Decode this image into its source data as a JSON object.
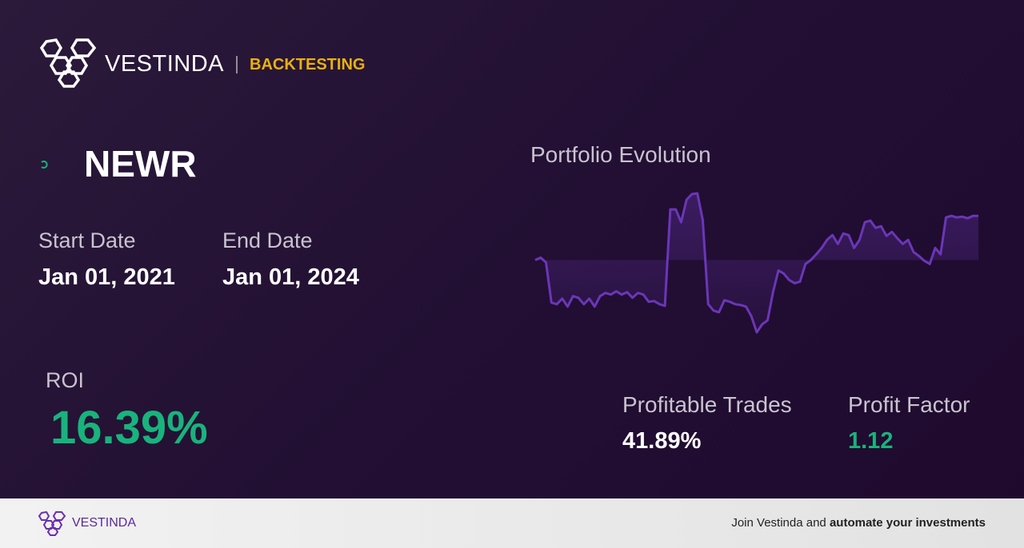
{
  "header": {
    "brand": "VESTINDA",
    "tag": "BACKTESTING"
  },
  "ticker": "NEWR",
  "start_date": {
    "label": "Start Date",
    "value": "Jan 01, 2021"
  },
  "end_date": {
    "label": "End Date",
    "value": "Jan 01, 2024"
  },
  "roi": {
    "label": "ROI",
    "value": "16.39%"
  },
  "profitable_trades": {
    "label": "Profitable Trades",
    "value": "41.89%"
  },
  "profit_factor": {
    "label": "Profit Factor",
    "value": "1.12"
  },
  "chart_data": {
    "type": "line",
    "title": "Portfolio Evolution",
    "color": "#6b36b8",
    "values": [
      0,
      0.9,
      -0.9,
      -15.9,
      -16.5,
      -14.4,
      -17.4,
      -13.5,
      -14.1,
      -16.5,
      -14.4,
      -17.4,
      -13.5,
      -12.3,
      -12.9,
      -11.7,
      -12.9,
      -12,
      -14.1,
      -12.3,
      -12.9,
      -15.6,
      -15.3,
      -16.5,
      -17.1,
      18.9,
      18.9,
      14.1,
      22.5,
      24.6,
      24.9,
      15,
      -16.5,
      -18.9,
      -19.5,
      -15,
      -15.6,
      -16.5,
      -16.8,
      -17.4,
      -21,
      -27,
      -24,
      -22.5,
      -12,
      -3.9,
      -5.1,
      -7.5,
      -8.7,
      -8.1,
      -1.5,
      0,
      2.1,
      4.5,
      7.5,
      9.3,
      6,
      9.9,
      9.3,
      4.5,
      7.5,
      14.1,
      14.7,
      12,
      12.6,
      9,
      10.5,
      8.1,
      6,
      7.5,
      3,
      1.5,
      -0.3,
      -1.5,
      4.5,
      2.1,
      15.9,
      16.5,
      15.9,
      16.2,
      15.6,
      16.5,
      16.5
    ]
  },
  "footer": {
    "brand": "VESTINDA",
    "text": "Join Vestinda and ",
    "text_bold": "automate your investments"
  }
}
